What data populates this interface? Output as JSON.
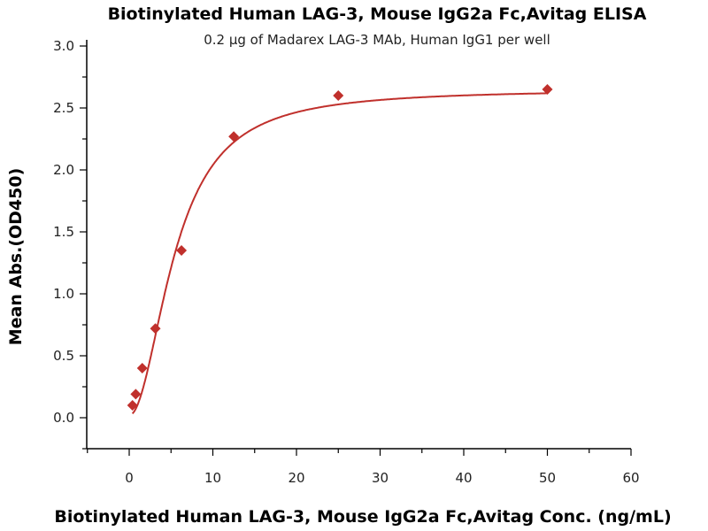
{
  "chart_data": {
    "type": "scatter",
    "title": "Biotinylated Human LAG-3, Mouse IgG2a Fc,Avitag ELISA",
    "subtitle": "0.2 µg of Madarex LAG-3 MAb, Human IgG1 per well",
    "xlabel": "Biotinylated Human LAG-3, Mouse IgG2a Fc,Avitag Conc. (ng/mL)",
    "ylabel": "Mean Abs.(OD450)",
    "xlim": [
      -5,
      60
    ],
    "ylim": [
      -0.25,
      3.0
    ],
    "xticks": [
      "0",
      "10",
      "20",
      "30",
      "40",
      "50",
      "60"
    ],
    "xtick_values": [
      0,
      10,
      20,
      30,
      40,
      50,
      60
    ],
    "yticks": [
      "0.0",
      "0.5",
      "1.0",
      "1.5",
      "2.0",
      "2.5",
      "3.0"
    ],
    "ytick_values": [
      0,
      0.5,
      1.0,
      1.5,
      2.0,
      2.5,
      3.0
    ],
    "grid": false,
    "series": [
      {
        "name": "OD450",
        "color": "#c0302c",
        "marker": "diamond",
        "x": [
          0.39,
          0.78,
          1.56,
          3.125,
          6.25,
          12.5,
          25,
          50
        ],
        "y": [
          0.1,
          0.19,
          0.4,
          0.72,
          1.35,
          2.27,
          2.6,
          2.65
        ],
        "fit": {
          "model": "4PL",
          "bottom": 0.02,
          "top": 2.65,
          "ec50": 5.5,
          "hill": 2.0
        }
      }
    ]
  }
}
